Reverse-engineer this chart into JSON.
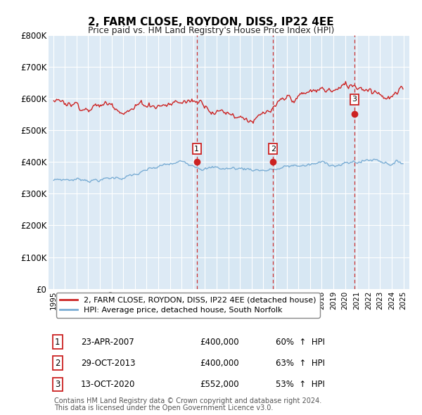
{
  "title": "2, FARM CLOSE, ROYDON, DISS, IP22 4EE",
  "subtitle": "Price paid vs. HM Land Registry's House Price Index (HPI)",
  "ylim": [
    0,
    800000
  ],
  "yticks": [
    0,
    100000,
    200000,
    300000,
    400000,
    500000,
    600000,
    700000,
    800000
  ],
  "ytick_labels": [
    "£0",
    "£100K",
    "£200K",
    "£300K",
    "£400K",
    "£500K",
    "£600K",
    "£700K",
    "£800K"
  ],
  "hpi_color": "#7aadd4",
  "price_color": "#cc2222",
  "background_color": "#ddeaf5",
  "highlight_color": "#cfe0ef",
  "grid_color": "#ffffff",
  "legend_label_price": "2, FARM CLOSE, ROYDON, DISS, IP22 4EE (detached house)",
  "legend_label_hpi": "HPI: Average price, detached house, South Norfolk",
  "sales": [
    {
      "index": 1,
      "date": "23-APR-2007",
      "price": 400000,
      "pct": "60%",
      "dir": "↑"
    },
    {
      "index": 2,
      "date": "29-OCT-2013",
      "price": 400000,
      "pct": "63%",
      "dir": "↑"
    },
    {
      "index": 3,
      "date": "13-OCT-2020",
      "price": 552000,
      "pct": "53%",
      "dir": "↑"
    }
  ],
  "sale_years": [
    2007.29,
    2013.83,
    2020.79
  ],
  "footnote1": "Contains HM Land Registry data © Crown copyright and database right 2024.",
  "footnote2": "This data is licensed under the Open Government Licence v3.0."
}
